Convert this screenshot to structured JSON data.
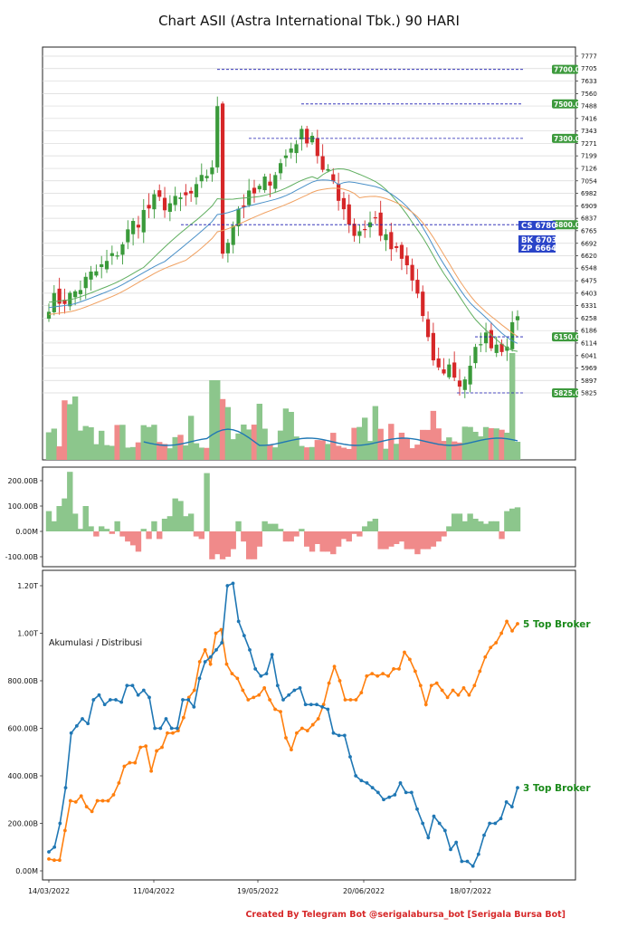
{
  "title": "Chart ASII (Astra International Tbk.) 90 HARI",
  "footer": "Created By Telegram Bot @serigalabursa_bot [Serigala Bursa Bot]",
  "colors": {
    "up": "#3a9a3a",
    "down": "#d62728",
    "up_vol": "#8cc68c",
    "down_vol": "#f08a8a",
    "blue": "#1f77b4",
    "orange": "#ff7f0e",
    "green_ma": "#2ca02c",
    "level_dash": "#1b1bb0"
  },
  "chart_data": [
    {
      "type": "candlestick",
      "ylim": [
        5825,
        7777
      ],
      "yticks": [
        "7777",
        "7705",
        "7633",
        "7560",
        "7488",
        "7416",
        "7343",
        "7271",
        "7199",
        "7126",
        "7054",
        "6982",
        "6909",
        "6837",
        "6765",
        "6692",
        "6620",
        "6548",
        "6475",
        "6403",
        "6331",
        "6258",
        "6186",
        "6114",
        "6041",
        "5969",
        "5897",
        "5825"
      ],
      "levels": [
        {
          "value": 7700,
          "label": "7700.0"
        },
        {
          "value": 7500,
          "label": "7500.0"
        },
        {
          "value": 7300,
          "label": "7300.0"
        },
        {
          "value": 6800,
          "label": "6800.0"
        },
        {
          "value": 6150,
          "label": "6150.0"
        },
        {
          "value": 5825,
          "label": "5825.0"
        }
      ],
      "indicators": [
        {
          "label": "CS 6780",
          "value": 6780
        },
        {
          "label": "BK 6703",
          "value": 6703
        },
        {
          "label": "ZP 6664",
          "value": 6664
        }
      ]
    },
    {
      "type": "bar",
      "yticks": [
        "200.00B",
        "100.00B",
        "0.00M",
        "-100.00B"
      ],
      "ylim": [
        -130,
        250
      ]
    },
    {
      "type": "line",
      "annotation": "Akumulasi / Distribusi",
      "xticks": [
        "14/03/2022",
        "11/04/2022",
        "19/05/2022",
        "20/06/2022",
        "18/07/2022"
      ],
      "yticks": [
        "1.20T",
        "1.00T",
        "800.00B",
        "600.00B",
        "400.00B",
        "200.00B",
        "0.00M"
      ],
      "ylim": [
        -40,
        1260
      ],
      "series": [
        {
          "name": "5 Top Broker",
          "values": [
            50,
            45,
            45,
            170,
            295,
            290,
            315,
            270,
            250,
            295,
            295,
            295,
            320,
            370,
            440,
            455,
            455,
            520,
            525,
            420,
            505,
            520,
            580,
            580,
            590,
            645,
            730,
            760,
            880,
            930,
            870,
            1000,
            1015,
            870,
            830,
            810,
            760,
            720,
            730,
            740,
            770,
            720,
            680,
            670,
            560,
            510,
            580,
            600,
            590,
            615,
            640,
            700,
            790,
            860,
            800,
            720,
            720,
            720,
            750,
            820,
            830,
            820,
            830,
            820,
            850,
            850,
            920,
            890,
            840,
            780,
            700,
            780,
            790,
            760,
            730,
            760,
            740,
            770,
            740,
            780,
            840,
            900,
            940,
            960,
            1000,
            1050,
            1010,
            1040
          ]
        },
        {
          "name": "3 Top Broker",
          "values": [
            80,
            100,
            200,
            350,
            580,
            610,
            640,
            620,
            720,
            740,
            700,
            720,
            720,
            710,
            780,
            780,
            740,
            760,
            730,
            600,
            600,
            640,
            600,
            600,
            720,
            720,
            690,
            810,
            880,
            900,
            930,
            960,
            1200,
            1210,
            1050,
            990,
            930,
            850,
            820,
            830,
            910,
            780,
            720,
            740,
            760,
            770,
            700,
            700,
            700,
            690,
            680,
            580,
            570,
            570,
            480,
            400,
            380,
            370,
            350,
            330,
            300,
            310,
            320,
            370,
            330,
            330,
            260,
            200,
            140,
            230,
            200,
            170,
            90,
            120,
            40,
            40,
            20,
            70,
            150,
            200,
            200,
            220,
            290,
            270,
            350
          ]
        }
      ]
    }
  ]
}
